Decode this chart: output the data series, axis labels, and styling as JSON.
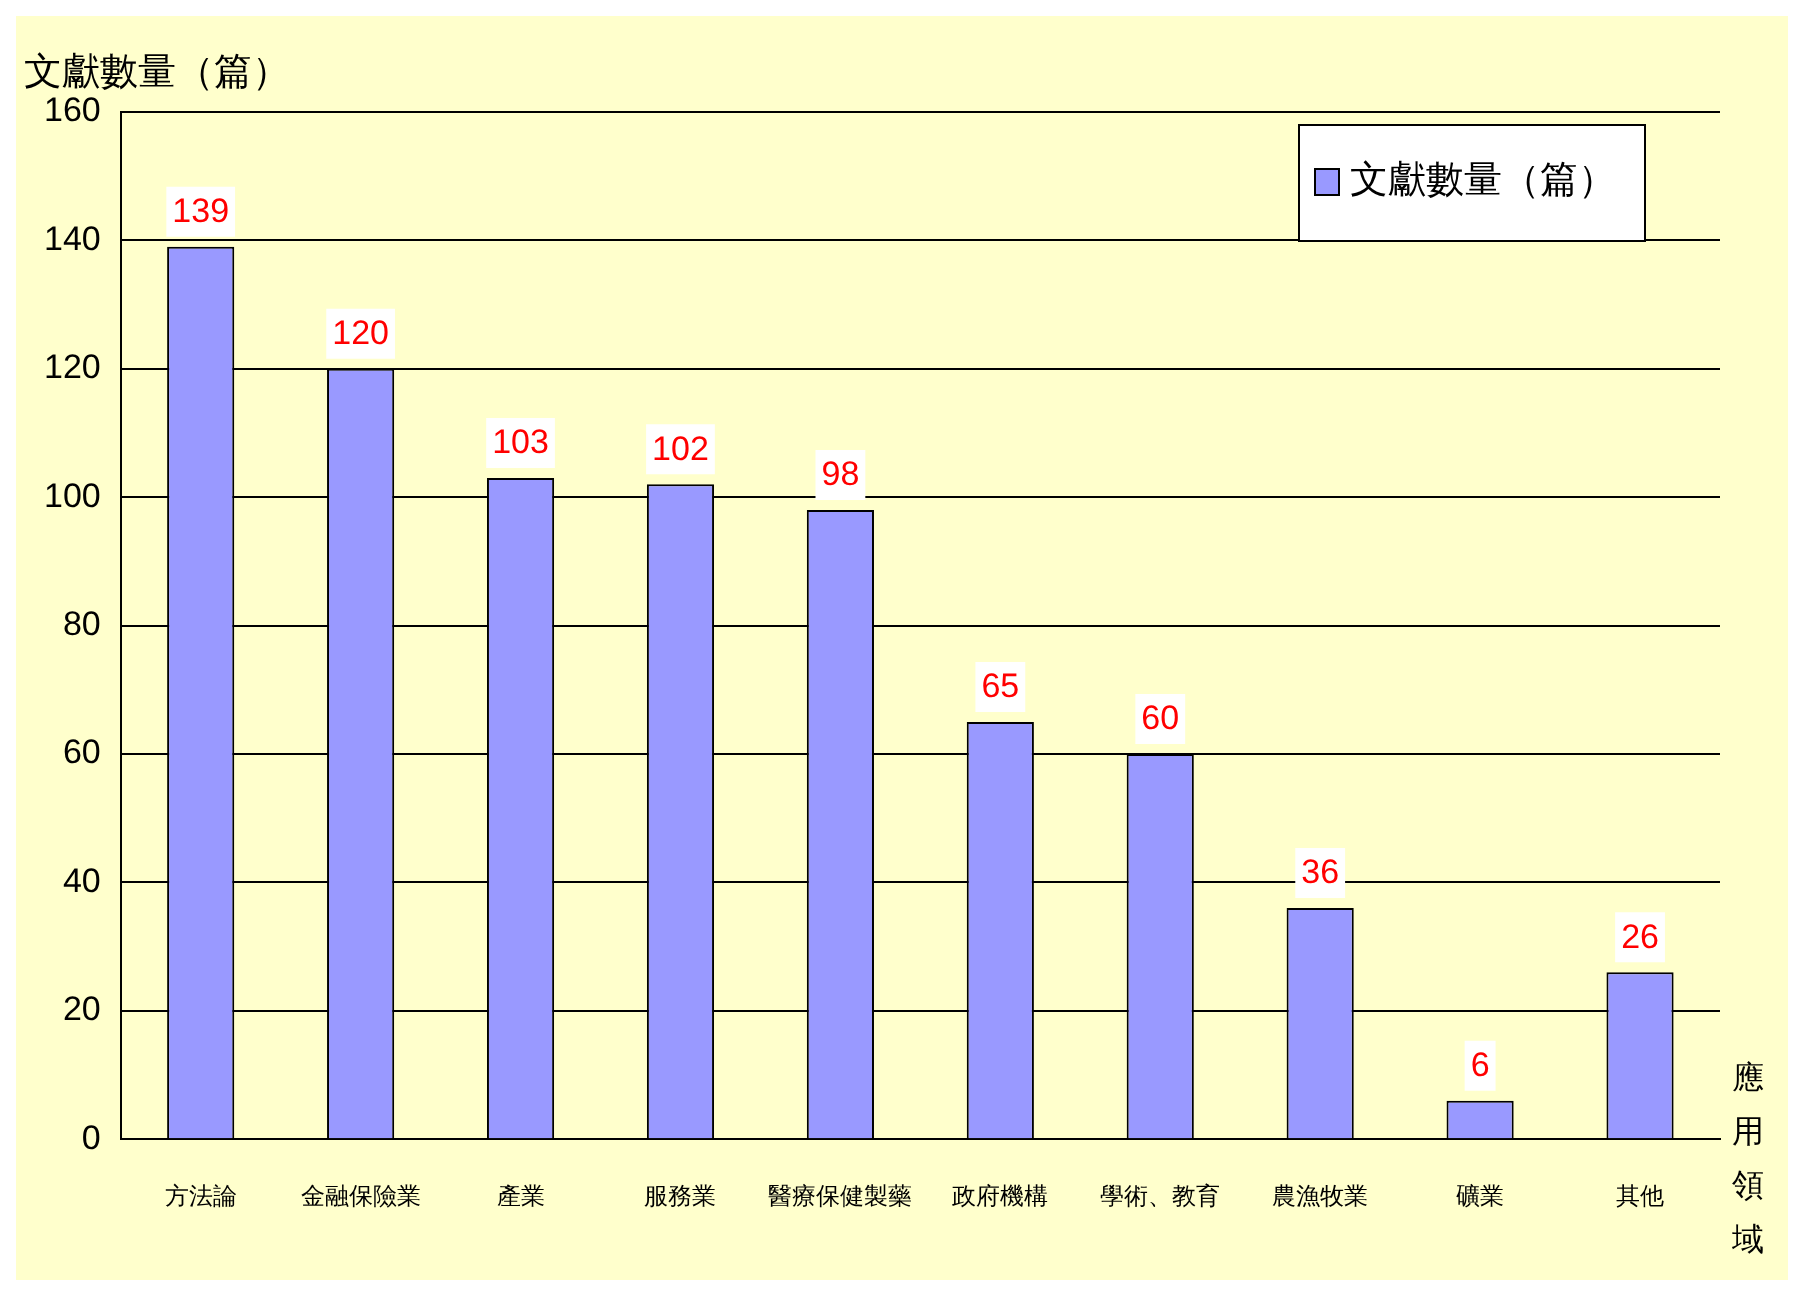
{
  "chart_data": {
    "type": "bar",
    "ylabel": "文獻數量（篇）",
    "xlabel": "應用領域",
    "categories": [
      "方法論",
      "金融保險業",
      "產業",
      "服務業",
      "醫療保健製藥",
      "政府機構",
      "學術、教育",
      "農漁牧業",
      "礦業",
      "其他"
    ],
    "series": [
      {
        "name": "文獻數量（篇）",
        "color": "#9999ff",
        "values": [
          139,
          120,
          103,
          102,
          98,
          65,
          60,
          36,
          6,
          26
        ]
      }
    ],
    "ylim": [
      0,
      160
    ],
    "yticks": [
      0,
      20,
      40,
      60,
      80,
      100,
      120,
      140,
      160
    ],
    "grid": "y",
    "legend": "top right",
    "data_labels": true
  }
}
